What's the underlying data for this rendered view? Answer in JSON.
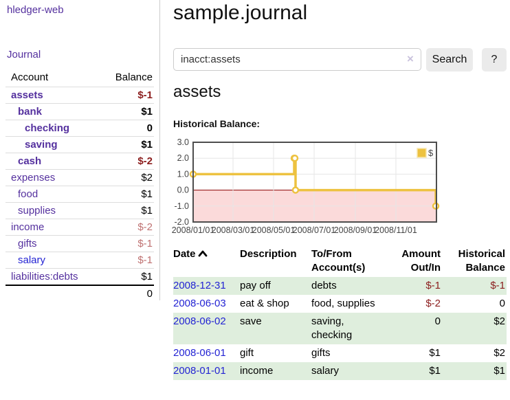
{
  "brand": "hledger-web",
  "sidebar": {
    "journal_link": "Journal",
    "table": {
      "account_header": "Account",
      "balance_header": "Balance",
      "rows": [
        {
          "name": "assets",
          "indent": 0,
          "bold": true,
          "balance": "$-1",
          "negative": true
        },
        {
          "name": "bank",
          "indent": 1,
          "bold": true,
          "balance": "$1",
          "negative": false
        },
        {
          "name": "checking",
          "indent": 2,
          "bold": true,
          "balance": "0",
          "negative": false
        },
        {
          "name": "saving",
          "indent": 2,
          "bold": true,
          "balance": "$1",
          "negative": false
        },
        {
          "name": "cash",
          "indent": 1,
          "bold": true,
          "balance": "$-2",
          "negative": true
        },
        {
          "name": "expenses",
          "indent": 0,
          "bold": false,
          "balance": "$2",
          "negative": false
        },
        {
          "name": "food",
          "indent": 1,
          "bold": false,
          "balance": "$1",
          "negative": false
        },
        {
          "name": "supplies",
          "indent": 1,
          "bold": false,
          "balance": "$1",
          "negative": false
        },
        {
          "name": "income",
          "indent": 0,
          "bold": false,
          "balance": "$-2",
          "negative": true
        },
        {
          "name": "gifts",
          "indent": 1,
          "bold": false,
          "balance": "$-1",
          "negative": true
        },
        {
          "name": "salary",
          "indent": 1,
          "bold": false,
          "balance": "$-1",
          "negative": true,
          "blue": true
        },
        {
          "name": "liabilities:debts",
          "indent": 0,
          "bold": false,
          "balance": "$1",
          "negative": false
        }
      ],
      "total": "0"
    }
  },
  "header": {
    "title": "sample.journal"
  },
  "search": {
    "value": "inacct:assets",
    "clear_icon": "×",
    "button_label": "Search",
    "help_label": "?"
  },
  "account_page": {
    "heading": "assets",
    "chart_label": "Historical Balance:"
  },
  "chart_data": {
    "type": "line",
    "style": "step-after",
    "title": "Historical Balance",
    "series": [
      {
        "name": "$",
        "color": "#EDC240",
        "points": [
          [
            "2008-01-01",
            1.0
          ],
          [
            "2008-06-01",
            2.0
          ],
          [
            "2008-06-02",
            2.0
          ],
          [
            "2008-06-03",
            0.0
          ],
          [
            "2008-12-31",
            -1.0
          ]
        ]
      }
    ],
    "x_range": [
      "2008-01-01",
      "2009-01-01"
    ],
    "x_ticks": [
      "2008/01/01",
      "2008/03/01",
      "2008/05/01",
      "2008/07/01",
      "2008/09/01",
      "2008/11/01"
    ],
    "y_ticks": [
      "3.0",
      "2.0",
      "1.0",
      "0.0",
      "-1.0",
      "-2.0"
    ],
    "ylim": [
      -2,
      3
    ],
    "grid": true,
    "legend": "$",
    "legend_position": "top-right",
    "negative_fill": "#fbdada",
    "zero_line_color": "#8b0000",
    "grid_color": "#e6e6e6",
    "border_color": "#4d4d4d"
  },
  "register": {
    "columns": {
      "date": "Date",
      "description": "Description",
      "accounts": "To/From Account(s)",
      "amount": "Amount Out/In",
      "balance": "Historical Balance"
    },
    "rows": [
      {
        "date": "2008-12-31",
        "description": "pay off",
        "accounts": "debts",
        "amount": "$-1",
        "amount_negative": true,
        "balance": "$-1",
        "balance_negative": true
      },
      {
        "date": "2008-06-03",
        "description": "eat & shop",
        "accounts": "food, supplies",
        "amount": "$-2",
        "amount_negative": true,
        "balance": "0",
        "balance_negative": false
      },
      {
        "date": "2008-06-02",
        "description": "save",
        "accounts": "saving, checking",
        "amount": "0",
        "amount_negative": false,
        "balance": "$2",
        "balance_negative": false
      },
      {
        "date": "2008-06-01",
        "description": "gift",
        "accounts": "gifts",
        "amount": "$1",
        "amount_negative": false,
        "balance": "$2",
        "balance_negative": false
      },
      {
        "date": "2008-01-01",
        "description": "income",
        "accounts": "salary",
        "amount": "$1",
        "amount_negative": false,
        "balance": "$1",
        "balance_negative": false
      }
    ]
  }
}
